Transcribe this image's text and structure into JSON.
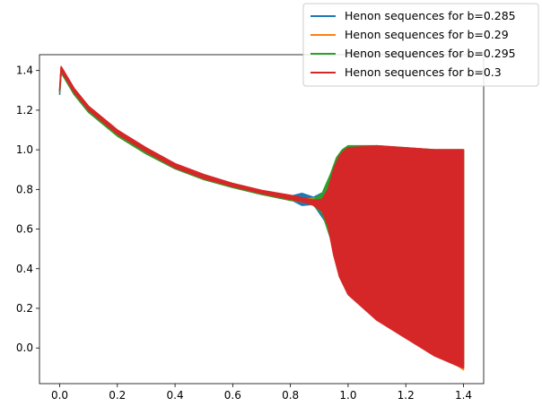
{
  "chart_data": {
    "type": "line",
    "title": "",
    "xlabel": "",
    "ylabel": "",
    "xlim": [
      -0.07,
      1.47
    ],
    "ylim": [
      -0.18,
      1.48
    ],
    "xticks": [
      0.0,
      0.2,
      0.4,
      0.6,
      0.8,
      1.0,
      1.2,
      1.4
    ],
    "xtick_labels": [
      "0.0",
      "0.2",
      "0.4",
      "0.6",
      "0.8",
      "1.0",
      "1.2",
      "1.4"
    ],
    "yticks": [
      0.0,
      0.2,
      0.4,
      0.6,
      0.8,
      1.0,
      1.2,
      1.4
    ],
    "ytick_labels": [
      "0.0",
      "0.2",
      "0.4",
      "0.6",
      "0.8",
      "1.0",
      "1.2",
      "1.4"
    ],
    "grid": false,
    "legend_position": "top-right",
    "series": [
      {
        "name": "Henon sequences for b=0.285",
        "color": "#1f77b4",
        "x": [
          0.0,
          0.005,
          0.05,
          0.1,
          0.2,
          0.3,
          0.4,
          0.5,
          0.6,
          0.7,
          0.8,
          0.84,
          0.88,
          0.92,
          0.95,
          0.98,
          1.0,
          1.1,
          1.2,
          1.3,
          1.38,
          1.4
        ],
        "upper": [
          1.28,
          1.41,
          1.3,
          1.21,
          1.09,
          1.0,
          0.925,
          0.87,
          0.825,
          0.79,
          0.765,
          0.78,
          0.76,
          0.79,
          0.83,
          0.92,
          0.97,
          1.0,
          1.0,
          1.0,
          1.0,
          1.0
        ],
        "lower": [
          1.28,
          1.39,
          1.28,
          1.19,
          1.07,
          0.98,
          0.905,
          0.85,
          0.81,
          0.775,
          0.75,
          0.72,
          0.725,
          0.64,
          0.52,
          0.38,
          0.28,
          0.15,
          0.06,
          -0.03,
          -0.08,
          -0.08
        ]
      },
      {
        "name": "Henon sequences for b=0.29",
        "color": "#ff7f0e",
        "x": [
          0.0,
          0.005,
          0.05,
          0.1,
          0.2,
          0.3,
          0.4,
          0.5,
          0.6,
          0.7,
          0.8,
          0.85,
          0.9,
          0.93,
          0.96,
          0.98,
          1.0,
          1.1,
          1.2,
          1.3,
          1.38,
          1.4
        ],
        "upper": [
          1.3,
          1.41,
          1.3,
          1.21,
          1.09,
          1.0,
          0.925,
          0.87,
          0.825,
          0.79,
          0.765,
          0.75,
          0.76,
          0.8,
          0.87,
          0.94,
          0.98,
          1.01,
          1.01,
          1.0,
          1.0,
          1.0
        ],
        "lower": [
          1.3,
          1.39,
          1.28,
          1.19,
          1.07,
          0.98,
          0.905,
          0.85,
          0.81,
          0.775,
          0.745,
          0.735,
          0.72,
          0.65,
          0.5,
          0.38,
          0.3,
          0.16,
          0.07,
          -0.02,
          -0.09,
          -0.11
        ]
      },
      {
        "name": "Henon sequences for b=0.295",
        "color": "#2ca02c",
        "x": [
          0.0,
          0.005,
          0.05,
          0.1,
          0.2,
          0.3,
          0.4,
          0.5,
          0.6,
          0.7,
          0.8,
          0.85,
          0.88,
          0.91,
          0.94,
          0.96,
          0.98,
          1.0,
          1.1,
          1.2,
          1.3,
          1.38,
          1.4
        ],
        "upper": [
          1.29,
          1.41,
          1.3,
          1.21,
          1.09,
          1.0,
          0.925,
          0.87,
          0.825,
          0.79,
          0.765,
          0.75,
          0.75,
          0.78,
          0.88,
          0.96,
          1.0,
          1.02,
          1.02,
          1.01,
          1.0,
          1.0,
          1.0
        ],
        "lower": [
          1.29,
          1.39,
          1.28,
          1.19,
          1.07,
          0.98,
          0.905,
          0.85,
          0.81,
          0.775,
          0.745,
          0.735,
          0.72,
          0.68,
          0.55,
          0.42,
          0.34,
          0.28,
          0.15,
          0.06,
          -0.03,
          -0.08,
          -0.09
        ]
      },
      {
        "name": "Henon sequences for b=0.3",
        "color": "#d62728",
        "x": [
          0.0,
          0.005,
          0.05,
          0.1,
          0.2,
          0.3,
          0.4,
          0.5,
          0.6,
          0.7,
          0.8,
          0.85,
          0.88,
          0.91,
          0.93,
          0.95,
          0.97,
          0.99,
          1.0,
          1.1,
          1.2,
          1.3,
          1.38,
          1.4
        ],
        "upper": [
          1.3,
          1.42,
          1.31,
          1.22,
          1.1,
          1.01,
          0.93,
          0.875,
          0.83,
          0.795,
          0.77,
          0.755,
          0.745,
          0.75,
          0.8,
          0.9,
          0.97,
          1.0,
          1.01,
          1.02,
          1.01,
          1.0,
          1.0,
          1.0
        ],
        "lower": [
          1.3,
          1.4,
          1.29,
          1.2,
          1.08,
          0.99,
          0.91,
          0.855,
          0.815,
          0.78,
          0.75,
          0.735,
          0.72,
          0.69,
          0.62,
          0.47,
          0.36,
          0.3,
          0.27,
          0.14,
          0.05,
          -0.04,
          -0.09,
          -0.1
        ]
      }
    ]
  }
}
